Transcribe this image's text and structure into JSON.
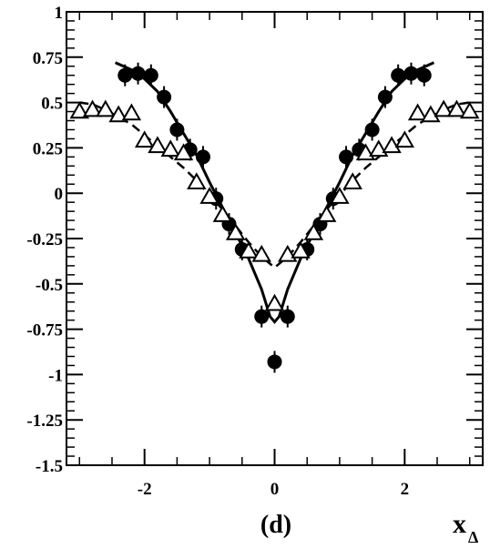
{
  "chart_data": {
    "type": "scatter",
    "title": "",
    "xlabel": "x",
    "xlabel_subscript": "Δ",
    "ylabel": "",
    "panel_label": "(d)",
    "xlim": [
      -3.2,
      3.2
    ],
    "ylim": [
      -1.5,
      1.0
    ],
    "grid": false,
    "legend": "none",
    "x_ticks": [
      -2,
      0,
      2
    ],
    "x_tick_labels": [
      "-2",
      "0",
      "2"
    ],
    "y_ticks": [
      1,
      0.75,
      0.5,
      0.25,
      0,
      -0.25,
      -0.5,
      -0.75,
      -1,
      -1.25,
      -1.5
    ],
    "y_tick_labels": [
      "1",
      "0.75",
      "0.5",
      "0.25",
      "0",
      "-0.25",
      "-0.5",
      "-0.75",
      "-1",
      "-1.25",
      "-1.5"
    ],
    "series": [
      {
        "marker": "filled-circle",
        "color": "#000000",
        "points": [
          [
            -2.3,
            0.65
          ],
          [
            -2.1,
            0.66
          ],
          [
            -1.9,
            0.65
          ],
          [
            -1.7,
            0.53
          ],
          [
            -1.5,
            0.35
          ],
          [
            -1.3,
            0.24
          ],
          [
            -1.1,
            0.2
          ],
          [
            -0.9,
            -0.03
          ],
          [
            -0.7,
            -0.17
          ],
          [
            -0.5,
            -0.31
          ],
          [
            -0.2,
            -0.68
          ],
          [
            0.0,
            -0.93
          ],
          [
            0.2,
            -0.68
          ],
          [
            0.5,
            -0.31
          ],
          [
            0.7,
            -0.17
          ],
          [
            0.9,
            -0.03
          ],
          [
            1.1,
            0.2
          ],
          [
            1.3,
            0.24
          ],
          [
            1.5,
            0.35
          ],
          [
            1.7,
            0.53
          ],
          [
            1.9,
            0.65
          ],
          [
            2.1,
            0.66
          ],
          [
            2.3,
            0.65
          ]
        ]
      },
      {
        "marker": "open-triangle",
        "color": "#000000",
        "points": [
          [
            -3.0,
            0.45
          ],
          [
            -2.8,
            0.46
          ],
          [
            -2.6,
            0.46
          ],
          [
            -2.4,
            0.43
          ],
          [
            -2.2,
            0.44
          ],
          [
            -2.0,
            0.29
          ],
          [
            -1.8,
            0.26
          ],
          [
            -1.6,
            0.24
          ],
          [
            -1.4,
            0.22
          ],
          [
            -1.2,
            0.06
          ],
          [
            -1.0,
            -0.02
          ],
          [
            -0.8,
            -0.12
          ],
          [
            -0.6,
            -0.22
          ],
          [
            -0.4,
            -0.32
          ],
          [
            -0.2,
            -0.34
          ],
          [
            0.0,
            -0.61
          ],
          [
            0.2,
            -0.34
          ],
          [
            0.4,
            -0.32
          ],
          [
            0.6,
            -0.22
          ],
          [
            0.8,
            -0.12
          ],
          [
            1.0,
            -0.02
          ],
          [
            1.2,
            0.06
          ],
          [
            1.4,
            0.22
          ],
          [
            1.6,
            0.24
          ],
          [
            1.8,
            0.26
          ],
          [
            2.0,
            0.29
          ],
          [
            2.2,
            0.44
          ],
          [
            2.4,
            0.43
          ],
          [
            2.6,
            0.46
          ],
          [
            2.8,
            0.46
          ],
          [
            3.0,
            0.45
          ]
        ]
      }
    ],
    "curves": [
      {
        "style": "solid",
        "color": "#000000",
        "points": [
          [
            -2.45,
            0.72
          ],
          [
            -2.2,
            0.68
          ],
          [
            -2.0,
            0.63
          ],
          [
            -1.8,
            0.56
          ],
          [
            -1.6,
            0.45
          ],
          [
            -1.4,
            0.33
          ],
          [
            -1.2,
            0.21
          ],
          [
            -1.0,
            0.06
          ],
          [
            -0.8,
            -0.08
          ],
          [
            -0.6,
            -0.22
          ],
          [
            -0.4,
            -0.36
          ],
          [
            -0.2,
            -0.53
          ],
          [
            -0.07,
            -0.68
          ],
          [
            0.0,
            -0.71
          ],
          [
            0.07,
            -0.68
          ],
          [
            0.2,
            -0.53
          ],
          [
            0.4,
            -0.36
          ],
          [
            0.6,
            -0.22
          ],
          [
            0.8,
            -0.08
          ],
          [
            1.0,
            0.06
          ],
          [
            1.2,
            0.21
          ],
          [
            1.4,
            0.33
          ],
          [
            1.6,
            0.45
          ],
          [
            1.8,
            0.56
          ],
          [
            2.0,
            0.63
          ],
          [
            2.2,
            0.68
          ],
          [
            2.45,
            0.72
          ]
        ]
      },
      {
        "style": "dashed",
        "color": "#000000",
        "points": [
          [
            -3.0,
            0.5
          ],
          [
            -2.8,
            0.49
          ],
          [
            -2.6,
            0.46
          ],
          [
            -2.4,
            0.42
          ],
          [
            -2.2,
            0.38
          ],
          [
            -2.0,
            0.32
          ],
          [
            -1.8,
            0.26
          ],
          [
            -1.6,
            0.2
          ],
          [
            -1.4,
            0.14
          ],
          [
            -1.2,
            0.07
          ],
          [
            -1.0,
            -0.01
          ],
          [
            -0.8,
            -0.09
          ],
          [
            -0.6,
            -0.18
          ],
          [
            -0.4,
            -0.27
          ],
          [
            -0.2,
            -0.35
          ],
          [
            0.0,
            -0.41
          ],
          [
            0.2,
            -0.35
          ],
          [
            0.4,
            -0.27
          ],
          [
            0.6,
            -0.18
          ],
          [
            0.8,
            -0.09
          ],
          [
            1.0,
            -0.01
          ],
          [
            1.2,
            0.07
          ],
          [
            1.4,
            0.14
          ],
          [
            1.6,
            0.2
          ],
          [
            1.8,
            0.26
          ],
          [
            2.0,
            0.32
          ],
          [
            2.2,
            0.38
          ],
          [
            2.4,
            0.42
          ],
          [
            2.6,
            0.46
          ],
          [
            2.8,
            0.49
          ],
          [
            3.0,
            0.5
          ]
        ]
      }
    ]
  }
}
